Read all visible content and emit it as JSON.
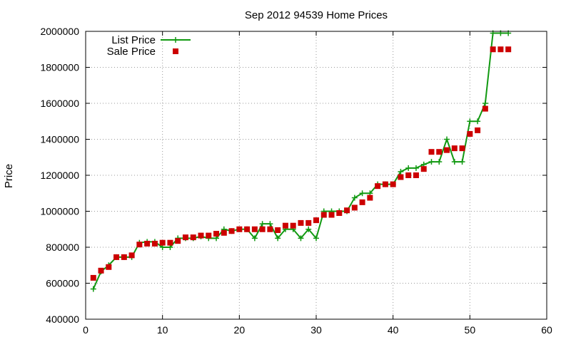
{
  "chart_data": {
    "type": "line",
    "title": "Sep 2012 94539 Home Prices",
    "xlabel": "",
    "ylabel": "Price",
    "xlim": [
      0,
      60
    ],
    "ylim": [
      400000,
      2000000
    ],
    "x_ticks": [
      0,
      10,
      20,
      30,
      40,
      50,
      60
    ],
    "y_ticks": [
      400000,
      600000,
      800000,
      1000000,
      1200000,
      1400000,
      1600000,
      1800000,
      2000000
    ],
    "grid": true,
    "legend_position": "top-left",
    "series": [
      {
        "name": "List Price",
        "style": "line+cross",
        "color": "#119911",
        "x": [
          1,
          2,
          3,
          4,
          5,
          6,
          7,
          8,
          9,
          10,
          11,
          12,
          13,
          14,
          15,
          16,
          17,
          18,
          19,
          20,
          21,
          22,
          23,
          24,
          25,
          26,
          27,
          28,
          29,
          30,
          31,
          32,
          33,
          34,
          35,
          36,
          37,
          38,
          39,
          40,
          41,
          42,
          43,
          44,
          45,
          46,
          47,
          48,
          49,
          50,
          51,
          52,
          53,
          54,
          55
        ],
        "values": [
          568000,
          665000,
          700000,
          745000,
          745000,
          745000,
          825000,
          830000,
          830000,
          800000,
          800000,
          850000,
          850000,
          850000,
          860000,
          850000,
          850000,
          900000,
          890000,
          900000,
          900000,
          850000,
          930000,
          930000,
          850000,
          900000,
          900000,
          850000,
          900000,
          850000,
          1000000,
          1000000,
          1000000,
          1000000,
          1075000,
          1100000,
          1100000,
          1150000,
          1150000,
          1150000,
          1220000,
          1240000,
          1240000,
          1260000,
          1275000,
          1275000,
          1400000,
          1275000,
          1275000,
          1500000,
          1500000,
          1600000,
          1990000,
          1990000,
          1990000
        ]
      },
      {
        "name": "Sale Price",
        "style": "square-markers",
        "color": "#cc0000",
        "x": [
          1,
          2,
          3,
          4,
          5,
          6,
          7,
          8,
          9,
          10,
          11,
          12,
          13,
          14,
          15,
          16,
          17,
          18,
          19,
          20,
          21,
          22,
          23,
          24,
          25,
          26,
          27,
          28,
          29,
          30,
          31,
          32,
          33,
          34,
          35,
          36,
          37,
          38,
          39,
          40,
          41,
          42,
          43,
          44,
          45,
          46,
          47,
          48,
          49,
          50,
          51,
          52,
          53,
          54,
          55
        ],
        "values": [
          630000,
          670000,
          690000,
          745000,
          745000,
          755000,
          815000,
          820000,
          820000,
          825000,
          825000,
          835000,
          855000,
          855000,
          865000,
          865000,
          875000,
          880000,
          890000,
          900000,
          900000,
          900000,
          900000,
          900000,
          895000,
          920000,
          920000,
          935000,
          935000,
          950000,
          980000,
          980000,
          990000,
          1005000,
          1020000,
          1050000,
          1075000,
          1140000,
          1150000,
          1150000,
          1190000,
          1200000,
          1200000,
          1235000,
          1330000,
          1330000,
          1340000,
          1350000,
          1350000,
          1430000,
          1450000,
          1570000,
          1900000,
          1900000,
          1900000
        ]
      }
    ]
  }
}
